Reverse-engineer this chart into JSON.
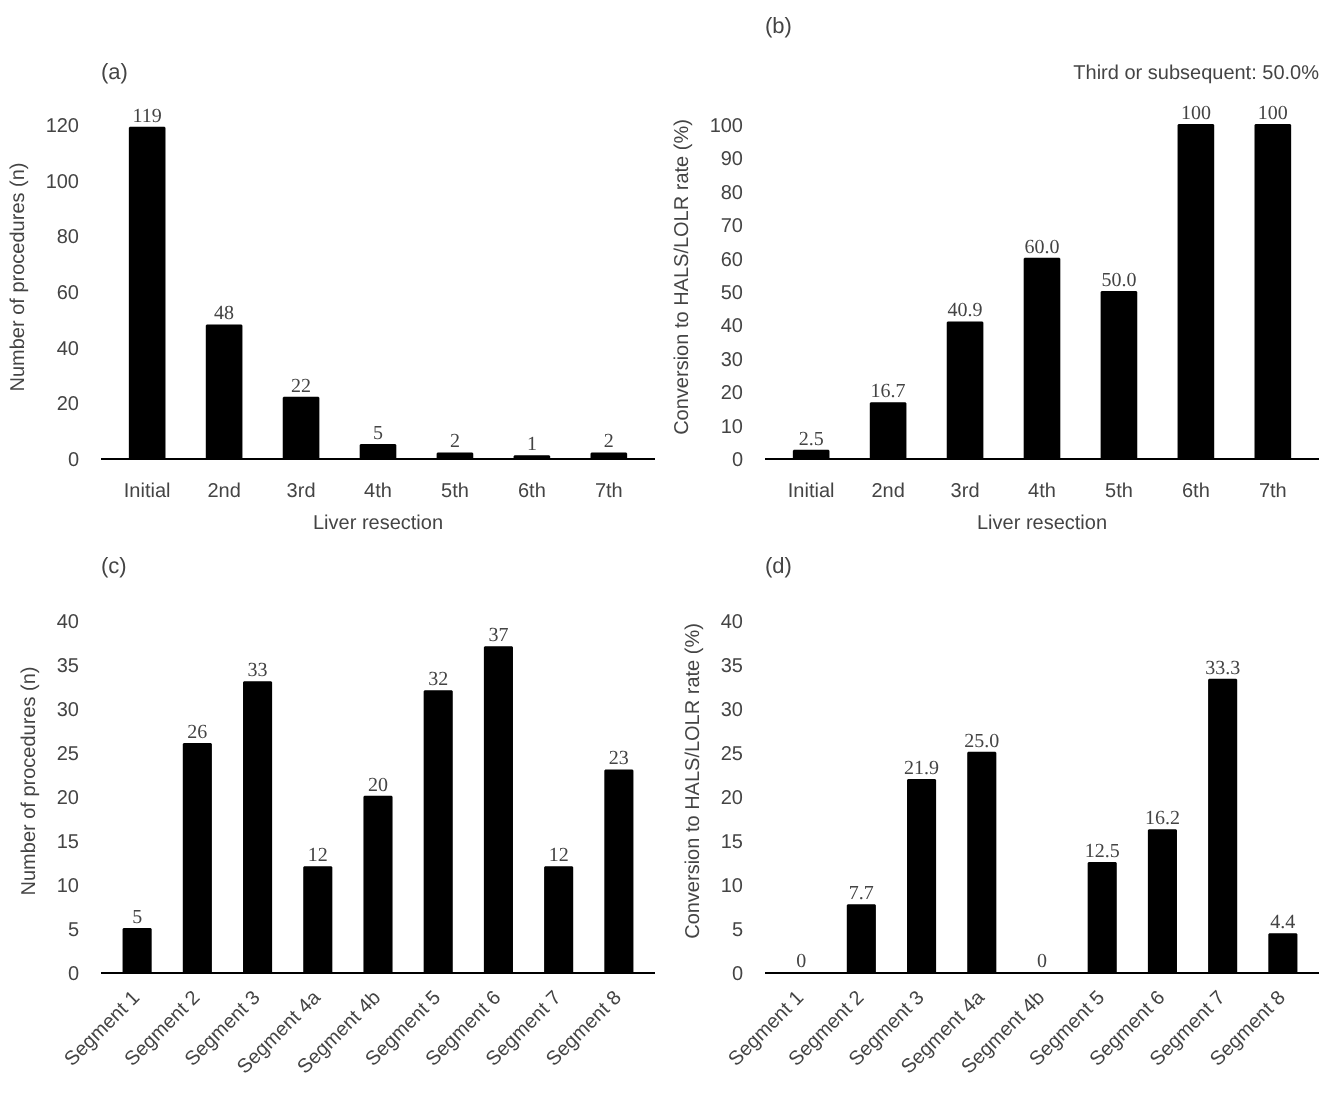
{
  "chart_data": [
    {
      "type": "bar",
      "title": "(a)",
      "xlabel": "Liver resection",
      "ylabel": "Number of procedures (n)",
      "categories": [
        "Initial",
        "2nd",
        "3rd",
        "4th",
        "5th",
        "6th",
        "7th"
      ],
      "values": [
        119,
        48,
        22,
        5,
        2,
        1,
        2
      ],
      "color": "#000000",
      "ylim": [
        0,
        120
      ],
      "yticks": [
        0,
        20,
        40,
        60,
        80,
        100,
        120
      ],
      "data_labels": true,
      "grid": false
    },
    {
      "type": "bar",
      "title": "(b)",
      "xlabel": "Liver resection",
      "ylabel": "Conversion to HALS/LOLR rate (%)",
      "categories": [
        "Initial",
        "2nd",
        "3rd",
        "4th",
        "5th",
        "6th",
        "7th"
      ],
      "values": [
        2.5,
        16.7,
        40.9,
        60.0,
        50.0,
        100,
        100
      ],
      "value_labels": [
        "2.5",
        "16.7",
        "40.9",
        "60.0",
        "50.0",
        "100",
        "100"
      ],
      "color": "#000000",
      "ylim": [
        0,
        100
      ],
      "yticks": [
        0,
        10,
        20,
        30,
        40,
        50,
        60,
        70,
        80,
        90,
        100
      ],
      "annotations": [
        "Third or subsequent: 50.0%"
      ],
      "grid": false
    },
    {
      "type": "bar",
      "title": "(c)",
      "ylabel": "Number of procedures (n)",
      "categories": [
        "Segment 1",
        "Segment 2",
        "Segment 3",
        "Segment 4a",
        "Segment 4b",
        "Segment 5",
        "Segment 6",
        "Segment 7",
        "Segment 8"
      ],
      "values": [
        5,
        26,
        33,
        12,
        20,
        32,
        37,
        12,
        23
      ],
      "color": "#000000",
      "ylim": [
        0,
        40
      ],
      "yticks": [
        0,
        5,
        10,
        15,
        20,
        25,
        30,
        35,
        40
      ],
      "data_labels": true,
      "grid": false
    },
    {
      "type": "bar",
      "title": "(d)",
      "ylabel": "Conversion to HALS/LOLR rate (%)",
      "categories": [
        "Segment 1",
        "Segment 2",
        "Segment 3",
        "Segment 4a",
        "Segment 4b",
        "Segment 5",
        "Segment 6",
        "Segment 7",
        "Segment 8"
      ],
      "values": [
        0,
        7.7,
        21.9,
        25.0,
        0,
        12.5,
        16.2,
        33.3,
        4.4
      ],
      "value_labels": [
        "0",
        "7.7",
        "21.9",
        "25.0",
        "0",
        "12.5",
        "16.2",
        "33.3",
        "4.4"
      ],
      "color": "#000000",
      "ylim": [
        0,
        40
      ],
      "yticks": [
        0,
        5,
        10,
        15,
        20,
        25,
        30,
        35,
        40
      ],
      "grid": false
    }
  ]
}
